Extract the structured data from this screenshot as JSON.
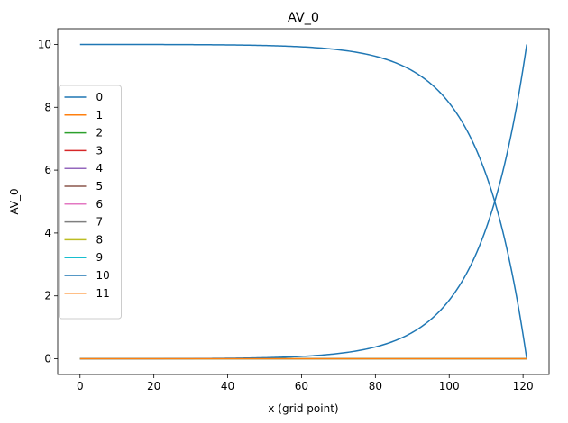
{
  "chart_data": {
    "type": "line",
    "title": "AV_0",
    "xlabel": "x (grid point)",
    "ylabel": "AV_0",
    "xlim": [
      -6.05,
      127.05
    ],
    "ylim": [
      -0.5,
      10.5
    ],
    "xticks": [
      0,
      20,
      40,
      60,
      80,
      100,
      120
    ],
    "yticks": [
      0,
      2,
      4,
      6,
      8,
      10
    ],
    "grid": false,
    "legend_position": "center-left",
    "series": [
      {
        "name": "0",
        "color": "#1f77b4",
        "curve": "decay",
        "x_range": [
          0,
          121
        ],
        "start": 10,
        "end": 0
      },
      {
        "name": "1",
        "color": "#ff7f0e",
        "curve": "flat",
        "x_range": [
          0,
          121
        ],
        "value": 0
      },
      {
        "name": "2",
        "color": "#2ca02c",
        "curve": "flat",
        "x_range": [
          0,
          121
        ],
        "value": 0
      },
      {
        "name": "3",
        "color": "#d62728",
        "curve": "flat",
        "x_range": [
          0,
          121
        ],
        "value": 0
      },
      {
        "name": "4",
        "color": "#9467bd",
        "curve": "flat",
        "x_range": [
          0,
          121
        ],
        "value": 0
      },
      {
        "name": "5",
        "color": "#8c564b",
        "curve": "flat",
        "x_range": [
          0,
          121
        ],
        "value": 0
      },
      {
        "name": "6",
        "color": "#e377c2",
        "curve": "flat",
        "x_range": [
          0,
          121
        ],
        "value": 0
      },
      {
        "name": "7",
        "color": "#7f7f7f",
        "curve": "flat",
        "x_range": [
          0,
          121
        ],
        "value": 0
      },
      {
        "name": "8",
        "color": "#bcbd22",
        "curve": "flat",
        "x_range": [
          0,
          121
        ],
        "value": 0
      },
      {
        "name": "9",
        "color": "#17becf",
        "curve": "flat",
        "x_range": [
          0,
          121
        ],
        "value": 0
      },
      {
        "name": "10",
        "color": "#1f77b4",
        "curve": "growth",
        "x_range": [
          0,
          121
        ],
        "start": 0,
        "end": 10
      },
      {
        "name": "11",
        "color": "#ff7f0e",
        "curve": "flat",
        "x_range": [
          0,
          121
        ],
        "value": 0
      }
    ]
  }
}
